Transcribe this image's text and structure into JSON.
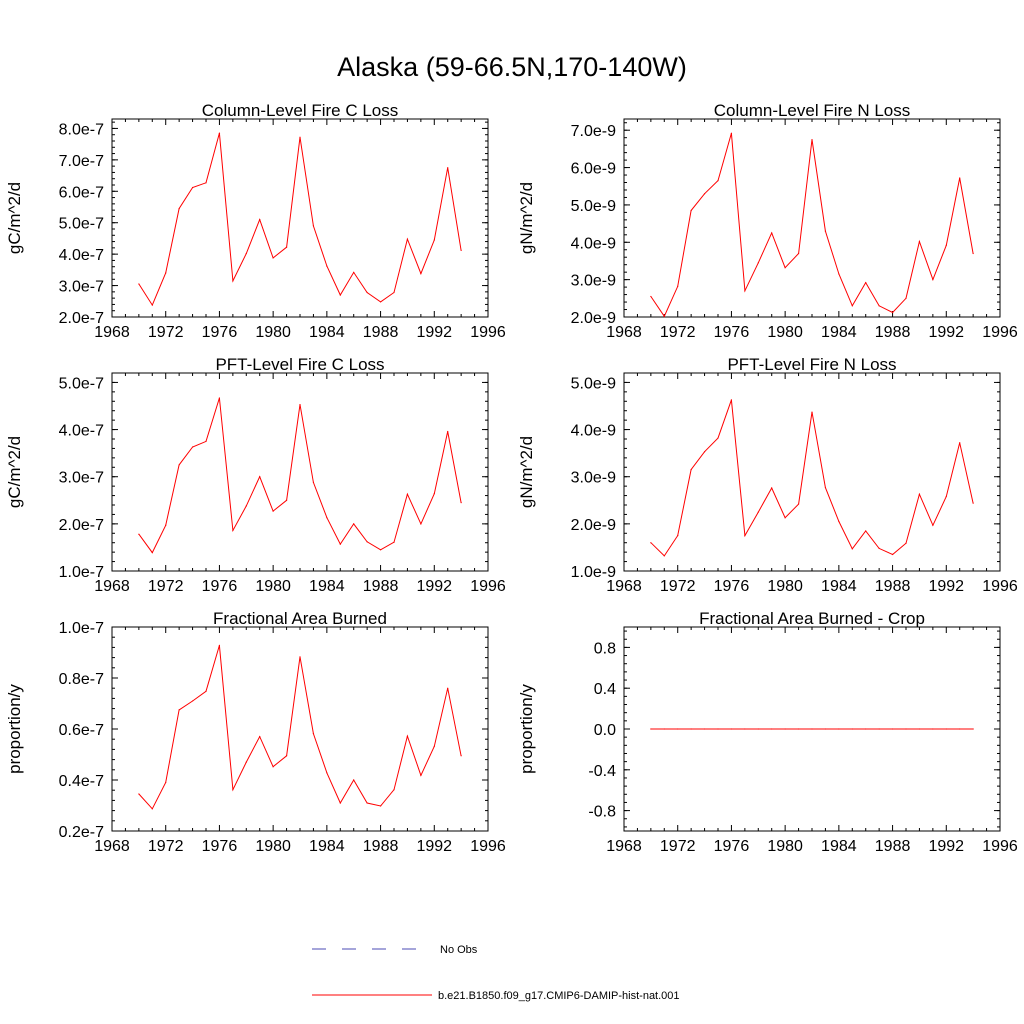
{
  "figure": {
    "title": "Alaska (59-66.5N,170-140W)",
    "colors": {
      "model": "#ff0000",
      "obs": "#4b4bb4",
      "axis": "#000000"
    }
  },
  "legend": {
    "obs_label": "No Obs",
    "model_label": "b.e21.B1850.f09_g17.CMIP6-DAMIP-hist-nat.001"
  },
  "chart_data": [
    {
      "type": "line",
      "title": "Column-Level Fire C Loss",
      "ylabel": "gC/m^2/d",
      "xlim": [
        1968,
        1996
      ],
      "ylim": [
        2e-07,
        8.3e-07
      ],
      "xticks": [
        1968,
        1972,
        1976,
        1980,
        1984,
        1988,
        1992,
        1996
      ],
      "yticks": [
        2e-07,
        3e-07,
        4e-07,
        5e-07,
        6e-07,
        7e-07,
        8e-07
      ],
      "ytick_labels": [
        "2.0e-7",
        "3.0e-7",
        "4.0e-7",
        "5.0e-7",
        "6.0e-7",
        "7.0e-7",
        "8.0e-7"
      ],
      "x": [
        1970,
        1971,
        1972,
        1973,
        1974,
        1975,
        1976,
        1977,
        1978,
        1979,
        1980,
        1981,
        1982,
        1983,
        1984,
        1985,
        1986,
        1987,
        1988,
        1989,
        1990,
        1991,
        1992,
        1993,
        1994
      ],
      "series": [
        {
          "values": [
            3.05e-07,
            2.38e-07,
            3.4e-07,
            5.45e-07,
            6.12e-07,
            6.27e-07,
            7.85e-07,
            3.15e-07,
            4.02e-07,
            5.1e-07,
            3.88e-07,
            4.22e-07,
            7.72e-07,
            4.9e-07,
            3.62e-07,
            2.7e-07,
            3.42e-07,
            2.78e-07,
            2.48e-07,
            2.78e-07,
            4.48e-07,
            3.38e-07,
            4.45e-07,
            6.75e-07,
            4.12e-07
          ]
        }
      ]
    },
    {
      "type": "line",
      "title": "Column-Level Fire N Loss",
      "ylabel": "gN/m^2/d",
      "xlim": [
        1968,
        1996
      ],
      "ylim": [
        2e-09,
        7.3e-09
      ],
      "xticks": [
        1968,
        1972,
        1976,
        1980,
        1984,
        1988,
        1992,
        1996
      ],
      "yticks": [
        2e-09,
        3e-09,
        4e-09,
        5e-09,
        6e-09,
        7e-09
      ],
      "ytick_labels": [
        "2.0e-9",
        "3.0e-9",
        "4.0e-9",
        "5.0e-9",
        "6.0e-9",
        "7.0e-9"
      ],
      "x": [
        1970,
        1971,
        1972,
        1973,
        1974,
        1975,
        1976,
        1977,
        1978,
        1979,
        1980,
        1981,
        1982,
        1983,
        1984,
        1985,
        1986,
        1987,
        1988,
        1989,
        1990,
        1991,
        1992,
        1993,
        1994
      ],
      "series": [
        {
          "values": [
            2.55e-09,
            2.02e-09,
            2.82e-09,
            4.85e-09,
            5.3e-09,
            5.65e-09,
            6.92e-09,
            2.7e-09,
            3.45e-09,
            4.25e-09,
            3.32e-09,
            3.7e-09,
            6.75e-09,
            4.3e-09,
            3.15e-09,
            2.3e-09,
            2.92e-09,
            2.3e-09,
            2.12e-09,
            2.5e-09,
            4.02e-09,
            3e-09,
            3.92e-09,
            5.72e-09,
            3.7e-09
          ]
        }
      ]
    },
    {
      "type": "line",
      "title": "PFT-Level Fire C Loss",
      "ylabel": "gC/m^2/d",
      "xlim": [
        1968,
        1996
      ],
      "ylim": [
        1e-07,
        5.2e-07
      ],
      "xticks": [
        1968,
        1972,
        1976,
        1980,
        1984,
        1988,
        1992,
        1996
      ],
      "yticks": [
        1e-07,
        2e-07,
        3e-07,
        4e-07,
        5e-07
      ],
      "ytick_labels": [
        "1.0e-7",
        "2.0e-7",
        "3.0e-7",
        "4.0e-7",
        "5.0e-7"
      ],
      "x": [
        1970,
        1971,
        1972,
        1973,
        1974,
        1975,
        1976,
        1977,
        1978,
        1979,
        1980,
        1981,
        1982,
        1983,
        1984,
        1985,
        1986,
        1987,
        1988,
        1989,
        1990,
        1991,
        1992,
        1993,
        1994
      ],
      "series": [
        {
          "values": [
            1.78e-07,
            1.39e-07,
            1.97e-07,
            3.25e-07,
            3.63e-07,
            3.75e-07,
            4.67e-07,
            1.86e-07,
            2.38e-07,
            3e-07,
            2.27e-07,
            2.5e-07,
            4.53e-07,
            2.88e-07,
            2.13e-07,
            1.57e-07,
            2e-07,
            1.62e-07,
            1.45e-07,
            1.61e-07,
            2.63e-07,
            2e-07,
            2.64e-07,
            3.96e-07,
            2.45e-07
          ]
        }
      ]
    },
    {
      "type": "line",
      "title": "PFT-Level Fire N Loss",
      "ylabel": "gN/m^2/d",
      "xlim": [
        1968,
        1996
      ],
      "ylim": [
        1e-09,
        5.2e-09
      ],
      "xticks": [
        1968,
        1972,
        1976,
        1980,
        1984,
        1988,
        1992,
        1996
      ],
      "yticks": [
        1e-09,
        2e-09,
        3e-09,
        4e-09,
        5e-09
      ],
      "ytick_labels": [
        "1.0e-9",
        "2.0e-9",
        "3.0e-9",
        "4.0e-9",
        "5.0e-9"
      ],
      "x": [
        1970,
        1971,
        1972,
        1973,
        1974,
        1975,
        1976,
        1977,
        1978,
        1979,
        1980,
        1981,
        1982,
        1983,
        1984,
        1985,
        1986,
        1987,
        1988,
        1989,
        1990,
        1991,
        1992,
        1993,
        1994
      ],
      "series": [
        {
          "values": [
            1.6e-09,
            1.32e-09,
            1.75e-09,
            3.15e-09,
            3.53e-09,
            3.82e-09,
            4.63e-09,
            1.75e-09,
            2.25e-09,
            2.76e-09,
            2.13e-09,
            2.42e-09,
            4.37e-09,
            2.77e-09,
            2.05e-09,
            1.47e-09,
            1.85e-09,
            1.48e-09,
            1.35e-09,
            1.59e-09,
            2.63e-09,
            1.97e-09,
            2.58e-09,
            3.72e-09,
            2.44e-09
          ]
        }
      ]
    },
    {
      "type": "line",
      "title": "Fractional Area Burned",
      "ylabel": "proportion/y",
      "xlim": [
        1968,
        1996
      ],
      "ylim": [
        2e-08,
        1e-07
      ],
      "xticks": [
        1968,
        1972,
        1976,
        1980,
        1984,
        1988,
        1992,
        1996
      ],
      "yticks": [
        2e-08,
        4e-08,
        6e-08,
        8e-08,
        1e-07
      ],
      "ytick_labels": [
        "0.2e-7",
        "0.4e-7",
        "0.6e-7",
        "0.8e-7",
        "1.0e-7"
      ],
      "x": [
        1970,
        1971,
        1972,
        1973,
        1974,
        1975,
        1976,
        1977,
        1978,
        1979,
        1980,
        1981,
        1982,
        1983,
        1984,
        1985,
        1986,
        1987,
        1988,
        1989,
        1990,
        1991,
        1992,
        1993,
        1994
      ],
      "series": [
        {
          "values": [
            3.45e-08,
            2.87e-08,
            3.9e-08,
            6.75e-08,
            7.1e-08,
            7.48e-08,
            9.28e-08,
            3.62e-08,
            4.7e-08,
            5.7e-08,
            4.52e-08,
            4.95e-08,
            8.83e-08,
            5.82e-08,
            4.28e-08,
            3.1e-08,
            4e-08,
            3.1e-08,
            2.98e-08,
            3.62e-08,
            5.72e-08,
            4.18e-08,
            5.32e-08,
            7.6e-08,
            4.95e-08
          ]
        }
      ]
    },
    {
      "type": "line",
      "title": "Fractional Area Burned - Crop",
      "ylabel": "proportion/y",
      "xlim": [
        1968,
        1996
      ],
      "ylim": [
        -1.0,
        1.0
      ],
      "xticks": [
        1968,
        1972,
        1976,
        1980,
        1984,
        1988,
        1992,
        1996
      ],
      "yticks": [
        -0.8,
        -0.4,
        0.0,
        0.4,
        0.8
      ],
      "ytick_labels": [
        "-0.8",
        "-0.4",
        "0.0",
        "0.4",
        "0.8"
      ],
      "x": [
        1970,
        1971,
        1972,
        1973,
        1974,
        1975,
        1976,
        1977,
        1978,
        1979,
        1980,
        1981,
        1982,
        1983,
        1984,
        1985,
        1986,
        1987,
        1988,
        1989,
        1990,
        1991,
        1992,
        1993,
        1994
      ],
      "series": [
        {
          "values": [
            0,
            0,
            0,
            0,
            0,
            0,
            0,
            0,
            0,
            0,
            0,
            0,
            0,
            0,
            0,
            0,
            0,
            0,
            0,
            0,
            0,
            0,
            0,
            0,
            0
          ]
        }
      ]
    }
  ]
}
